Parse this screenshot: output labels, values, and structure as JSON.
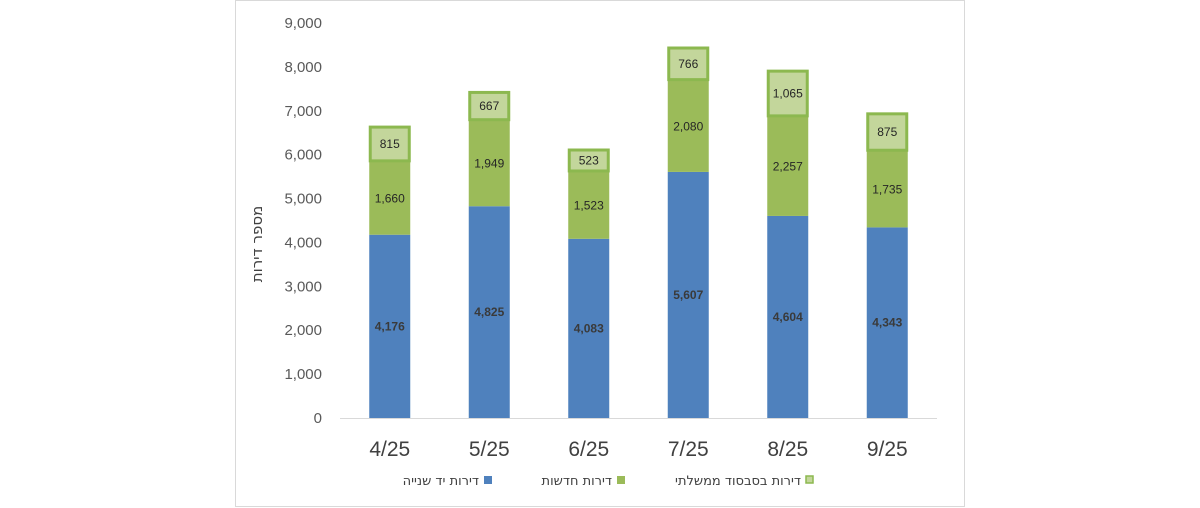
{
  "chart_data": {
    "type": "bar",
    "stacked": true,
    "categories": [
      "4/25",
      "5/25",
      "6/25",
      "7/25",
      "8/25",
      "9/25"
    ],
    "series": [
      {
        "name": "דירות יד שנייה",
        "values": [
          4176,
          4825,
          4083,
          5607,
          4604,
          4343
        ],
        "labels": [
          "4,176",
          "4,825",
          "4,083",
          "5,607",
          "4,604",
          "4,343"
        ],
        "color": "#4f81bd"
      },
      {
        "name": "דירות חדשות",
        "values": [
          1660,
          1949,
          1523,
          2080,
          2257,
          1735
        ],
        "labels": [
          "1,660",
          "1,949",
          "1,523",
          "2,080",
          "2,257",
          "1,735"
        ],
        "color": "#9bbb59"
      },
      {
        "name": "דירות בסבסוד ממשלתי",
        "values": [
          815,
          667,
          523,
          766,
          1065,
          875
        ],
        "labels": [
          "815",
          "667",
          "523",
          "766",
          "1,065",
          "875"
        ],
        "color": "#c3d69b",
        "border": "#8cb84f"
      }
    ],
    "ylabel": "מספר דירות",
    "ylim": [
      0,
      9000
    ],
    "yticks": [
      0,
      1000,
      2000,
      3000,
      4000,
      5000,
      6000,
      7000,
      8000,
      9000
    ],
    "ytick_labels": [
      "0",
      "1,000",
      "2,000",
      "3,000",
      "4,000",
      "5,000",
      "6,000",
      "7,000",
      "8,000",
      "9,000"
    ],
    "grid": false,
    "legend_position": "bottom"
  }
}
